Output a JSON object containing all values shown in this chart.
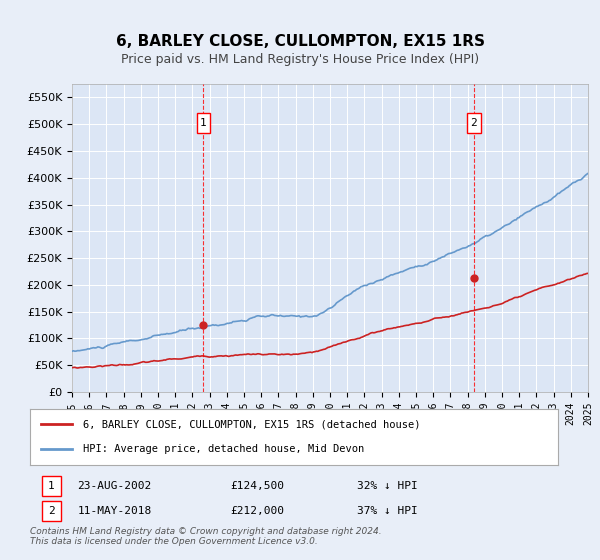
{
  "title": "6, BARLEY CLOSE, CULLOMPTON, EX15 1RS",
  "subtitle": "Price paid vs. HM Land Registry's House Price Index (HPI)",
  "background_color": "#e8eef8",
  "plot_bg_color": "#dce6f5",
  "ylabel_color": "#333333",
  "ylim": [
    0,
    575000
  ],
  "yticks": [
    0,
    50000,
    100000,
    150000,
    200000,
    250000,
    300000,
    350000,
    400000,
    450000,
    500000,
    550000
  ],
  "ytick_labels": [
    "£0",
    "£50K",
    "£100K",
    "£150K",
    "£200K",
    "£250K",
    "£300K",
    "£350K",
    "£400K",
    "£450K",
    "£500K",
    "£550K"
  ],
  "hpi_color": "#6699cc",
  "price_color": "#cc2222",
  "marker1_year": 2002.64,
  "marker2_year": 2018.36,
  "sale1_date": "23-AUG-2002",
  "sale1_price": "£124,500",
  "sale1_hpi": "32% ↓ HPI",
  "sale2_date": "11-MAY-2018",
  "sale2_price": "£212,000",
  "sale2_hpi": "37% ↓ HPI",
  "legend_line1": "6, BARLEY CLOSE, CULLOMPTON, EX15 1RS (detached house)",
  "legend_line2": "HPI: Average price, detached house, Mid Devon",
  "footnote": "Contains HM Land Registry data © Crown copyright and database right 2024.\nThis data is licensed under the Open Government Licence v3.0.",
  "xstart": 1995,
  "xend": 2025
}
